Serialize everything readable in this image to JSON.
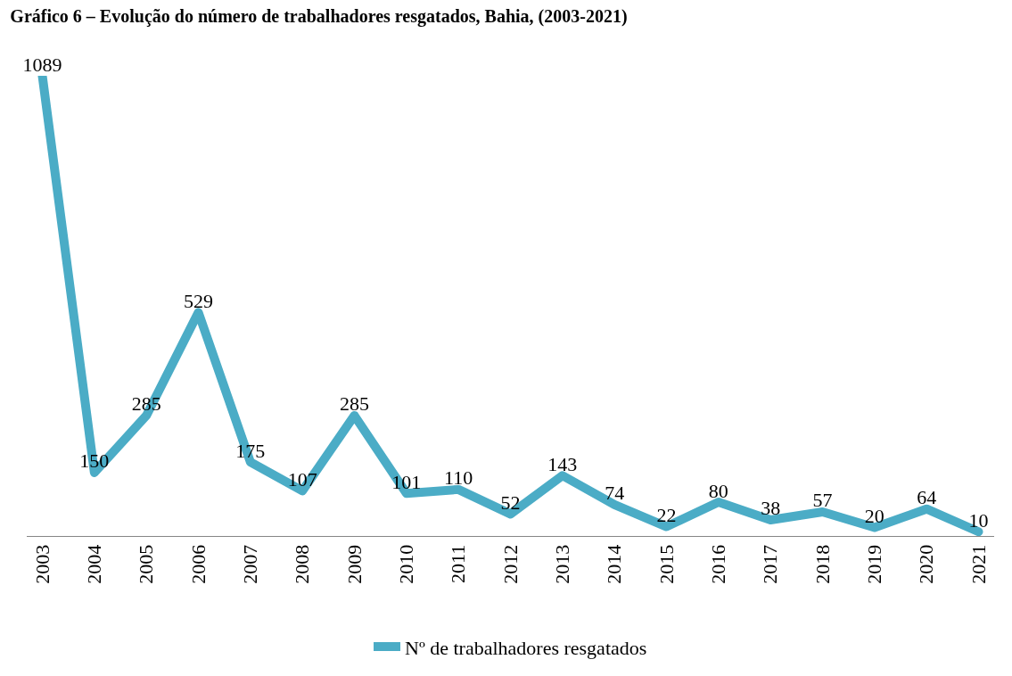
{
  "chart_data": {
    "type": "line",
    "title": "Gráfico 6 – Evolução do número de trabalhadores resgatados, Bahia, (2003-2021)",
    "categories": [
      "2003",
      "2004",
      "2005",
      "2006",
      "2007",
      "2008",
      "2009",
      "2010",
      "2011",
      "2012",
      "2013",
      "2014",
      "2015",
      "2016",
      "2017",
      "2018",
      "2019",
      "2020",
      "2021"
    ],
    "series": [
      {
        "name": "Nº de trabalhadores resgatados",
        "color": "#4bacc6",
        "values": [
          1089,
          150,
          285,
          529,
          175,
          107,
          285,
          101,
          110,
          52,
          143,
          74,
          22,
          80,
          38,
          57,
          20,
          64,
          10
        ]
      }
    ],
    "data_labels": true,
    "legend": "bottom",
    "marker": "none",
    "line_style": "solid"
  }
}
